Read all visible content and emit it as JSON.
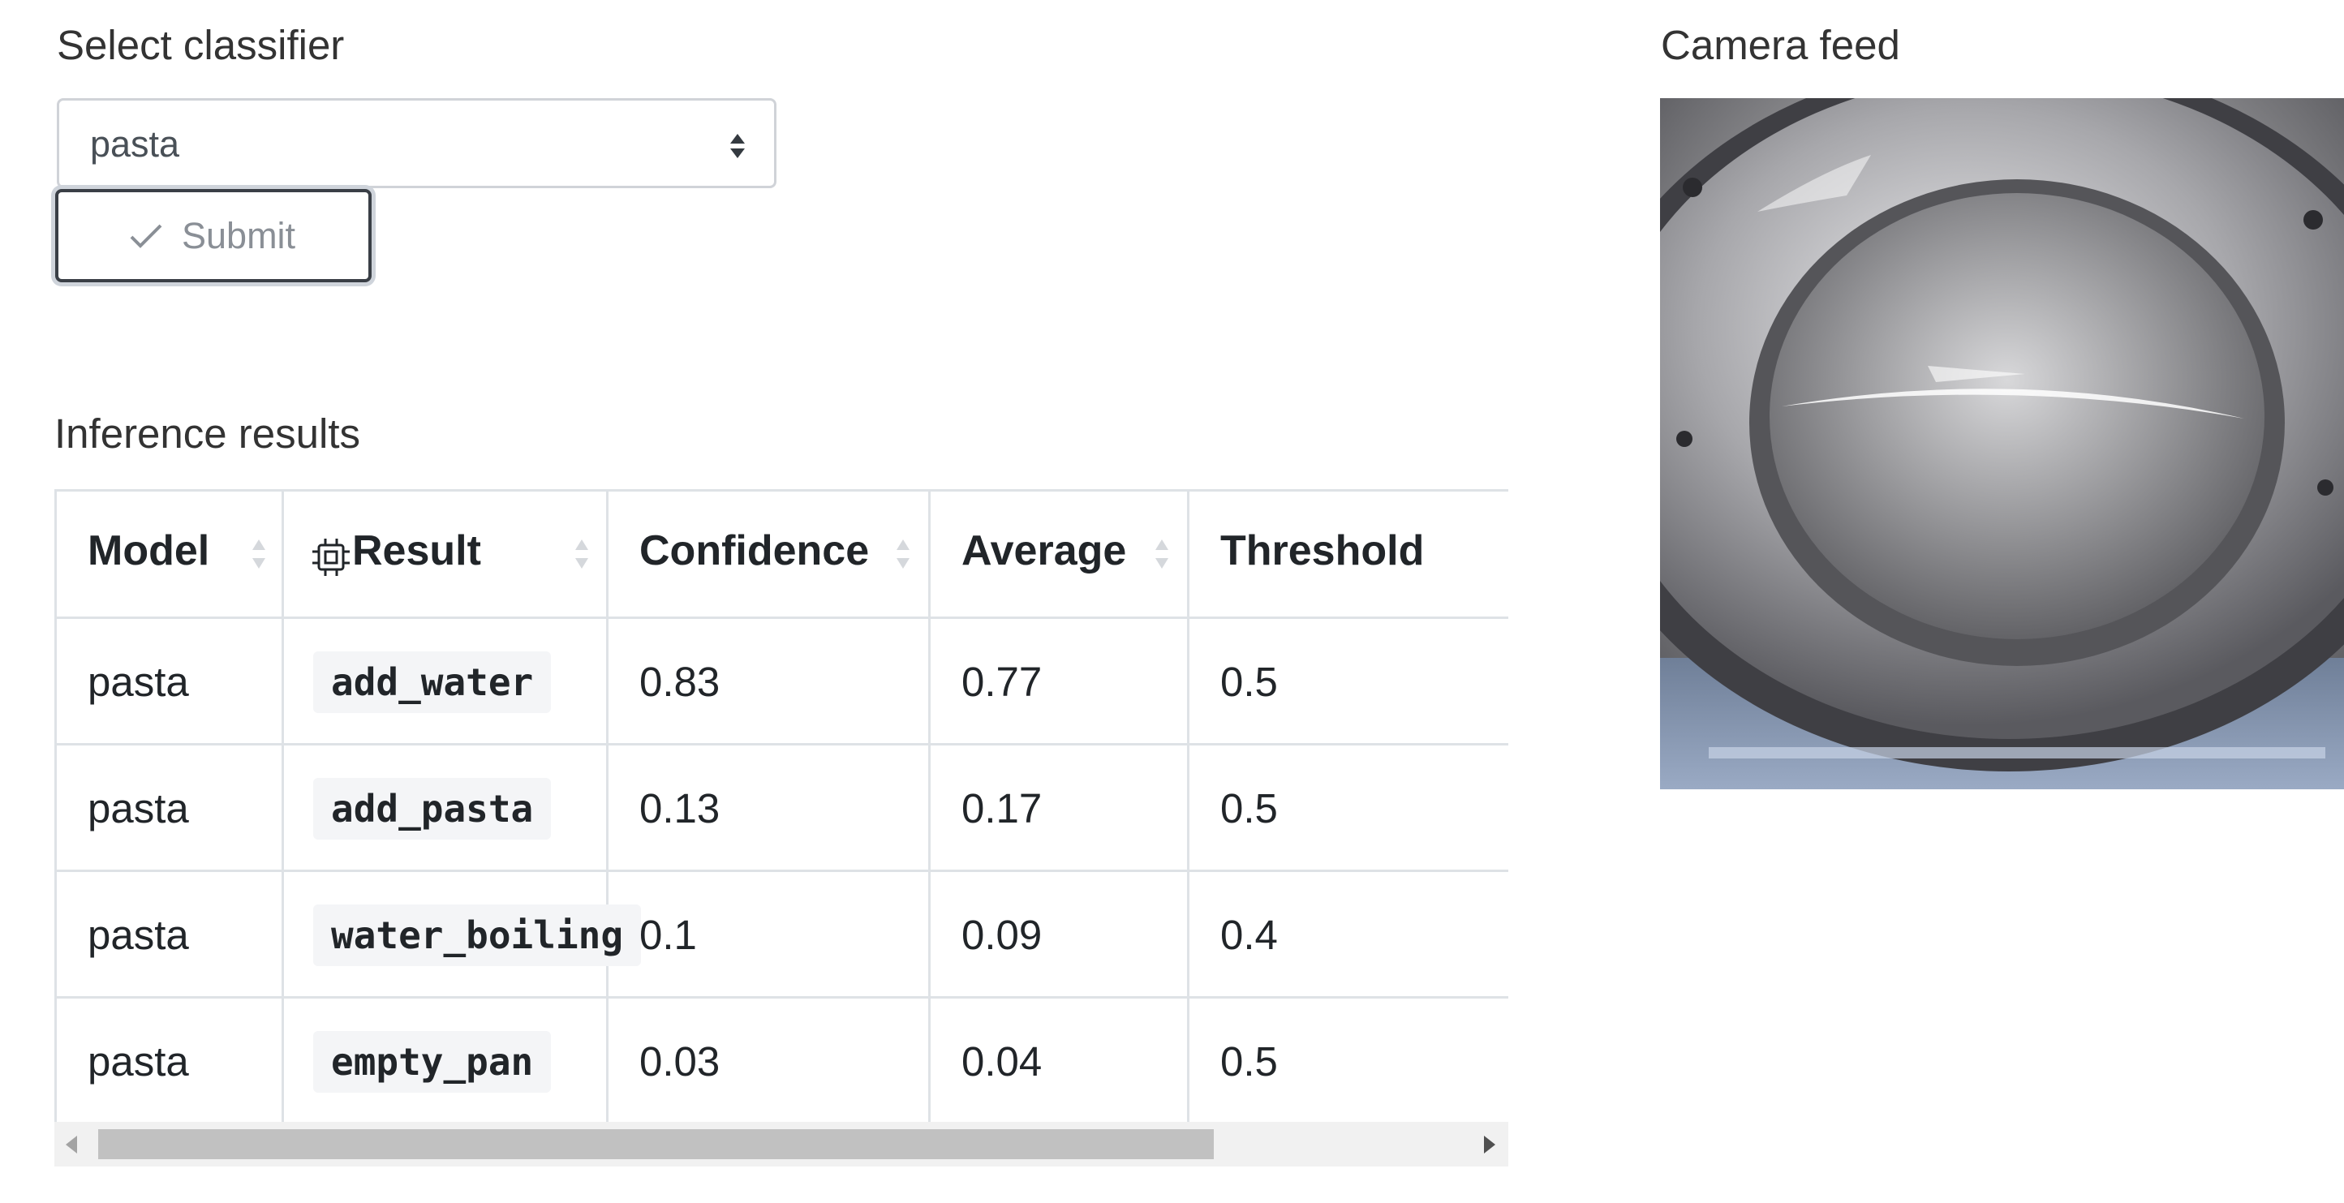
{
  "classifier": {
    "label": "Select classifier",
    "selected": "pasta",
    "submit_label": "Submit"
  },
  "inference": {
    "label": "Inference results",
    "columns": [
      "Model",
      "Result",
      "Confidence",
      "Average",
      "Threshold"
    ],
    "rows": [
      {
        "model": "pasta",
        "result": "add_water",
        "confidence": "0.83",
        "average": "0.77",
        "threshold": "0.5"
      },
      {
        "model": "pasta",
        "result": "add_pasta",
        "confidence": "0.13",
        "average": "0.17",
        "threshold": "0.5"
      },
      {
        "model": "pasta",
        "result": "water_boiling",
        "confidence": "0.1",
        "average": "0.09",
        "threshold": "0.4"
      },
      {
        "model": "pasta",
        "result": "empty_pan",
        "confidence": "0.03",
        "average": "0.04",
        "threshold": "0.5"
      }
    ]
  },
  "camera": {
    "label": "Camera feed"
  },
  "icons": {
    "submit": "check-icon",
    "result_header": "cpu-chip-icon",
    "sort": "sort-icon",
    "select": "select-arrows-icon"
  }
}
